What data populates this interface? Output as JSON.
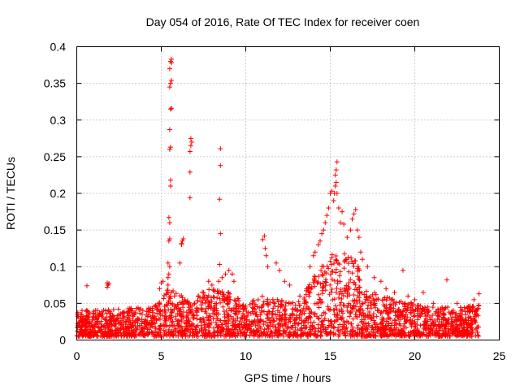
{
  "chart_data": {
    "type": "scatter",
    "title": "Day 054 of 2016, Rate Of TEC Index for receiver coen",
    "xlabel": "GPS time / hours",
    "ylabel": "ROTI / TECUs",
    "xlim": [
      0,
      25
    ],
    "ylim": [
      0,
      0.4
    ],
    "xticks": [
      0,
      5,
      10,
      15,
      20,
      25
    ],
    "xtick_labels": [
      "0",
      "5",
      "10",
      "15",
      "20",
      "25"
    ],
    "yticks": [
      0,
      0.05,
      0.1,
      0.15,
      0.2,
      0.25,
      0.3,
      0.35,
      0.4
    ],
    "ytick_labels": [
      "0",
      "0.05",
      "0.1",
      "0.15",
      "0.2",
      "0.25",
      "0.3",
      "0.35",
      "0.4"
    ],
    "grid": true,
    "marker": "plus",
    "color": "#ff0000",
    "series": [
      {
        "name": "ROTI",
        "points": [
          [
            0.6,
            0.074
          ],
          [
            1.8,
            0.078
          ],
          [
            1.9,
            0.077
          ],
          [
            1.85,
            0.075
          ],
          [
            1.8,
            0.072
          ],
          [
            4.9,
            0.07
          ],
          [
            5.0,
            0.078
          ],
          [
            5.1,
            0.08
          ],
          [
            5.3,
            0.062
          ],
          [
            5.35,
            0.068
          ],
          [
            5.4,
            0.075
          ],
          [
            5.4,
            0.085
          ],
          [
            5.45,
            0.09
          ],
          [
            5.5,
            0.1
          ],
          [
            5.4,
            0.105
          ],
          [
            5.45,
            0.135
          ],
          [
            5.5,
            0.138
          ],
          [
            5.45,
            0.167
          ],
          [
            5.5,
            0.16
          ],
          [
            5.55,
            0.21
          ],
          [
            5.55,
            0.218
          ],
          [
            5.5,
            0.26
          ],
          [
            5.55,
            0.263
          ],
          [
            5.5,
            0.287
          ],
          [
            5.55,
            0.315
          ],
          [
            5.6,
            0.316
          ],
          [
            5.5,
            0.345
          ],
          [
            5.55,
            0.35
          ],
          [
            5.6,
            0.354
          ],
          [
            5.5,
            0.37
          ],
          [
            5.55,
            0.38
          ],
          [
            5.6,
            0.383
          ],
          [
            5.6,
            0.378
          ],
          [
            6.1,
            0.105
          ],
          [
            6.2,
            0.13
          ],
          [
            6.25,
            0.135
          ],
          [
            6.3,
            0.138
          ],
          [
            6.2,
            0.132
          ],
          [
            6.7,
            0.194
          ],
          [
            6.7,
            0.229
          ],
          [
            6.7,
            0.257
          ],
          [
            6.75,
            0.265
          ],
          [
            6.8,
            0.27
          ],
          [
            6.75,
            0.275
          ],
          [
            7.2,
            0.06
          ],
          [
            7.5,
            0.065
          ],
          [
            7.8,
            0.08
          ],
          [
            8.0,
            0.075
          ],
          [
            8.4,
            0.08
          ],
          [
            8.45,
            0.103
          ],
          [
            8.5,
            0.145
          ],
          [
            8.45,
            0.192
          ],
          [
            8.5,
            0.238
          ],
          [
            8.5,
            0.261
          ],
          [
            8.6,
            0.085
          ],
          [
            8.8,
            0.09
          ],
          [
            9.0,
            0.095
          ],
          [
            9.2,
            0.09
          ],
          [
            9.3,
            0.08
          ],
          [
            11.0,
            0.137
          ],
          [
            11.1,
            0.142
          ],
          [
            11.15,
            0.125
          ],
          [
            11.2,
            0.115
          ],
          [
            11.3,
            0.1
          ],
          [
            11.8,
            0.105
          ],
          [
            12.0,
            0.095
          ],
          [
            12.3,
            0.08
          ],
          [
            12.6,
            0.075
          ],
          [
            13.2,
            0.06
          ],
          [
            13.6,
            0.07
          ],
          [
            13.8,
            0.1
          ],
          [
            14.0,
            0.115
          ],
          [
            14.1,
            0.12
          ],
          [
            14.3,
            0.13
          ],
          [
            14.4,
            0.135
          ],
          [
            14.5,
            0.145
          ],
          [
            14.6,
            0.15
          ],
          [
            14.7,
            0.16
          ],
          [
            14.8,
            0.17
          ],
          [
            14.9,
            0.18
          ],
          [
            15.0,
            0.2
          ],
          [
            15.1,
            0.203
          ],
          [
            15.2,
            0.19
          ],
          [
            15.25,
            0.2
          ],
          [
            15.3,
            0.21
          ],
          [
            15.35,
            0.215
          ],
          [
            15.3,
            0.225
          ],
          [
            15.35,
            0.232
          ],
          [
            15.4,
            0.243
          ],
          [
            15.4,
            0.2
          ],
          [
            15.5,
            0.18
          ],
          [
            15.6,
            0.16
          ],
          [
            15.7,
            0.175
          ],
          [
            15.8,
            0.158
          ],
          [
            16.0,
            0.14
          ],
          [
            16.2,
            0.15
          ],
          [
            16.3,
            0.165
          ],
          [
            16.4,
            0.172
          ],
          [
            16.5,
            0.178
          ],
          [
            16.6,
            0.15
          ],
          [
            16.7,
            0.14
          ],
          [
            16.8,
            0.12
          ],
          [
            16.9,
            0.11
          ],
          [
            17.2,
            0.1
          ],
          [
            17.6,
            0.085
          ],
          [
            18.0,
            0.08
          ],
          [
            18.3,
            0.07
          ],
          [
            18.8,
            0.065
          ],
          [
            19.3,
            0.095
          ],
          [
            19.6,
            0.06
          ],
          [
            20.0,
            0.055
          ],
          [
            20.5,
            0.065
          ],
          [
            21.1,
            0.05
          ],
          [
            21.9,
            0.082
          ],
          [
            22.5,
            0.05
          ],
          [
            23.5,
            0.055
          ],
          [
            23.8,
            0.063
          ]
        ],
        "dense_band": {
          "description": "dense noise band of points",
          "x_range": [
            0,
            23.8
          ],
          "y_min": 0.005,
          "y_max_profile": [
            [
              0,
              0.04
            ],
            [
              4.5,
              0.045
            ],
            [
              5.0,
              0.06
            ],
            [
              5.5,
              0.075
            ],
            [
              6.0,
              0.06
            ],
            [
              7.0,
              0.065
            ],
            [
              8.0,
              0.07
            ],
            [
              9.0,
              0.065
            ],
            [
              10.0,
              0.05
            ],
            [
              11.0,
              0.06
            ],
            [
              12.0,
              0.055
            ],
            [
              13.0,
              0.05
            ],
            [
              13.5,
              0.065
            ],
            [
              14.0,
              0.085
            ],
            [
              15.0,
              0.12
            ],
            [
              15.5,
              0.115
            ],
            [
              16.0,
              0.12
            ],
            [
              16.5,
              0.11
            ],
            [
              17.0,
              0.08
            ],
            [
              18.0,
              0.06
            ],
            [
              19.0,
              0.055
            ],
            [
              20.0,
              0.05
            ],
            [
              21.0,
              0.045
            ],
            [
              22.0,
              0.045
            ],
            [
              23.0,
              0.045
            ],
            [
              23.8,
              0.05
            ]
          ],
          "count": 2600
        }
      }
    ]
  }
}
